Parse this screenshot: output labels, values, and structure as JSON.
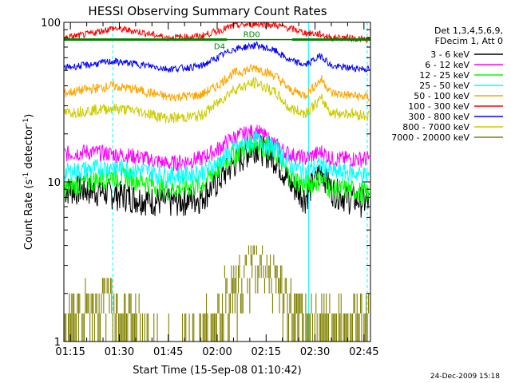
{
  "chart_data": {
    "type": "line",
    "title": "HESSI Observing Summary Count Rates",
    "xlabel": "Start Time (15-Sep-08 01:10:42)",
    "ylabel_main": "Count Rate (s",
    "ylabel_sup": "-1",
    "ylabel_rest": " detector",
    "ylabel_end": ")",
    "yscale": "log",
    "ylim": [
      1,
      100
    ],
    "xlim": [
      "01:13",
      "02:47"
    ],
    "x_ticks": [
      "01:15",
      "01:30",
      "01:45",
      "02:00",
      "02:15",
      "02:30",
      "02:45"
    ],
    "y_ticks": [
      "1",
      "10",
      "100"
    ],
    "timestamp": "24-Dec-2009 15:18",
    "legend_header": [
      "Det 1,3,4,5,6,9,",
      "FDecim 1, Att 0"
    ],
    "legend_position": "right",
    "flags": [
      {
        "label": "RD0",
        "color": "#008000"
      },
      {
        "label": "D4",
        "color": "#008000"
      }
    ],
    "series": [
      {
        "name": "3 - 6 keV",
        "color": "#000000",
        "x": [
          "01:13",
          "01:20",
          "01:28",
          "01:35",
          "01:45",
          "01:55",
          "02:00",
          "02:05",
          "02:12",
          "02:18",
          "02:22",
          "02:27",
          "02:32",
          "02:35",
          "02:40",
          "02:46"
        ],
        "values": [
          9,
          9,
          8.5,
          8,
          7.5,
          8,
          10,
          13,
          17,
          14,
          10,
          8,
          12,
          9,
          8,
          7.5
        ]
      },
      {
        "name": "6 - 12 keV",
        "color": "#ff00ff",
        "x": [
          "01:13",
          "01:20",
          "01:28",
          "01:35",
          "01:45",
          "01:55",
          "02:00",
          "02:05",
          "02:12",
          "02:18",
          "02:22",
          "02:27",
          "02:32",
          "02:35",
          "02:40",
          "02:46"
        ],
        "values": [
          15,
          15.5,
          15,
          14.5,
          13,
          14,
          16,
          19,
          21,
          17,
          15,
          14,
          15.5,
          14,
          14,
          14
        ]
      },
      {
        "name": "12 - 25 keV",
        "color": "#00ff00",
        "x": [
          "01:13",
          "01:20",
          "01:28",
          "01:35",
          "01:45",
          "01:55",
          "02:00",
          "02:05",
          "02:12",
          "02:18",
          "02:22",
          "02:27",
          "02:32",
          "02:35",
          "02:40",
          "02:46"
        ],
        "values": [
          9,
          10,
          11,
          10.5,
          9,
          9.5,
          12,
          15,
          18,
          15,
          11,
          9.5,
          10.5,
          9,
          9,
          8.5
        ]
      },
      {
        "name": "25 - 50 keV",
        "color": "#00ffff",
        "x": [
          "01:13",
          "01:20",
          "01:28",
          "01:35",
          "01:45",
          "01:55",
          "02:00",
          "02:05",
          "02:12",
          "02:18",
          "02:22",
          "02:27",
          "02:32",
          "02:35",
          "02:40",
          "02:46"
        ],
        "values": [
          11.5,
          12,
          12.5,
          12,
          11,
          11.5,
          13,
          16,
          18.5,
          16,
          13,
          11.5,
          13,
          11.5,
          11.5,
          11
        ]
      },
      {
        "name": "50 - 100 keV",
        "color": "#ffa500",
        "x": [
          "01:13",
          "01:20",
          "01:28",
          "01:35",
          "01:45",
          "01:55",
          "02:00",
          "02:05",
          "02:12",
          "02:18",
          "02:22",
          "02:27",
          "02:32",
          "02:35",
          "02:40",
          "02:46"
        ],
        "values": [
          36,
          38,
          40,
          38,
          34,
          35,
          40,
          48,
          52,
          46,
          38,
          35,
          44,
          36,
          35,
          34
        ]
      },
      {
        "name": "100 - 300 keV",
        "color": "#ff0000",
        "x": [
          "01:13",
          "01:20",
          "01:28",
          "01:35",
          "01:45",
          "01:55",
          "02:00",
          "02:05",
          "02:12",
          "02:18",
          "02:22",
          "02:27",
          "02:32",
          "02:35",
          "02:40",
          "02:46"
        ],
        "values": [
          80,
          84,
          92,
          88,
          80,
          82,
          88,
          95,
          98,
          96,
          92,
          86,
          84,
          80,
          80,
          78
        ]
      },
      {
        "name": "300 - 800 keV",
        "color": "#0000ff",
        "x": [
          "01:13",
          "01:20",
          "01:28",
          "01:35",
          "01:45",
          "01:55",
          "02:00",
          "02:05",
          "02:12",
          "02:18",
          "02:22",
          "02:27",
          "02:32",
          "02:35",
          "02:40",
          "02:46"
        ],
        "values": [
          52,
          54,
          57,
          55,
          51,
          53,
          60,
          68,
          72,
          66,
          58,
          54,
          62,
          53,
          52,
          51
        ]
      },
      {
        "name": "800 - 7000 keV",
        "color": "#cccc00",
        "x": [
          "01:13",
          "01:20",
          "01:28",
          "01:35",
          "01:45",
          "01:55",
          "02:00",
          "02:05",
          "02:12",
          "02:18",
          "02:22",
          "02:27",
          "02:32",
          "02:35",
          "02:40",
          "02:46"
        ],
        "values": [
          27,
          28,
          29,
          28,
          25,
          26,
          31,
          38,
          42,
          36,
          29,
          27,
          33,
          27,
          27,
          26
        ]
      },
      {
        "name": "7000 - 20000 keV",
        "color": "#808000",
        "x": [
          "01:13",
          "01:20",
          "01:28",
          "01:35",
          "01:45",
          "01:55",
          "02:00",
          "02:05",
          "02:12",
          "02:18",
          "02:22",
          "02:27",
          "02:32",
          "02:35",
          "02:40",
          "02:46"
        ],
        "values": [
          1.6,
          1.8,
          2.2,
          1.5,
          1,
          1.2,
          1.8,
          2.6,
          3.4,
          2.8,
          1.9,
          1.5,
          1.7,
          1.5,
          1.6,
          1.7
        ]
      }
    ]
  },
  "colors": {
    "cyan_markers": "#00ffff",
    "flag_green": "#008000",
    "frame": "#000000"
  }
}
